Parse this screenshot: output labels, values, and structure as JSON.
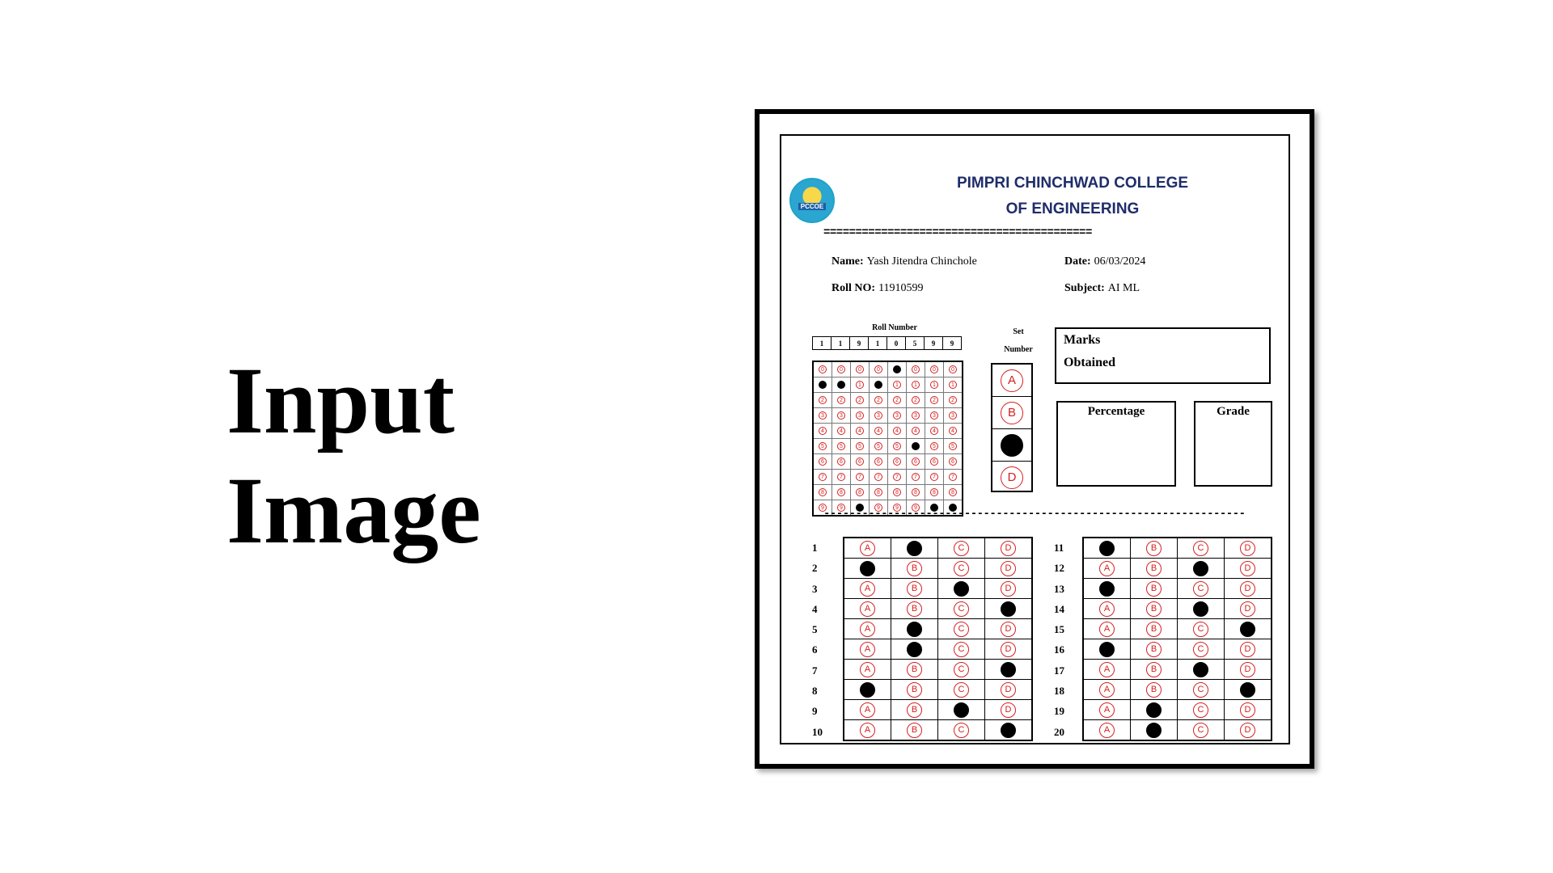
{
  "slide": {
    "title_line1": "Input",
    "title_line2": "Image"
  },
  "sheet": {
    "logo_text": "PCCOE",
    "college_line1": "PIMPRI CHINCHWAD COLLEGE",
    "college_line2": "OF ENGINEERING",
    "separator_equals": "==========================================",
    "separator_dashes": "-------------------------------------------------------------------------------------",
    "name_label": "Name:",
    "name_value": "Yash Jitendra Chinchole",
    "date_label": "Date:",
    "date_value": "06/03/2024",
    "roll_label": "Roll NO:",
    "roll_value": "11910599",
    "subject_label": "Subject:",
    "subject_value": "AI ML",
    "roll_number_heading": "Roll Number",
    "set_heading_line1": "Set",
    "set_heading_line2": "Number",
    "roll_digits": [
      "1",
      "1",
      "9",
      "1",
      "0",
      "5",
      "9",
      "9"
    ],
    "roll_bubble_rows": [
      "0",
      "1",
      "2",
      "3",
      "4",
      "5",
      "6",
      "7",
      "8",
      "9"
    ],
    "set_options": [
      "A",
      "B",
      "C",
      "D"
    ],
    "set_selected": "C",
    "marks_line1": "Marks",
    "marks_line2": "Obtained",
    "percentage_label": "Percentage",
    "grade_label": "Grade",
    "answer_options": [
      "A",
      "B",
      "C",
      "D"
    ],
    "answers_col1": [
      "B",
      "A",
      "C",
      "D",
      "B",
      "B",
      "D",
      "A",
      "C",
      "D"
    ],
    "answers_col2": [
      "A",
      "C",
      "A",
      "C",
      "D",
      "A",
      "C",
      "D",
      "B",
      "B"
    ],
    "question_numbers_col1": [
      "1",
      "2",
      "3",
      "4",
      "5",
      "6",
      "7",
      "8",
      "9",
      "10"
    ],
    "question_numbers_col2": [
      "11",
      "12",
      "13",
      "14",
      "15",
      "16",
      "17",
      "18",
      "19",
      "20"
    ]
  },
  "colors": {
    "college_blue": "#1f2d6b",
    "bubble_red": "#d42020",
    "fill_black": "#000000"
  }
}
